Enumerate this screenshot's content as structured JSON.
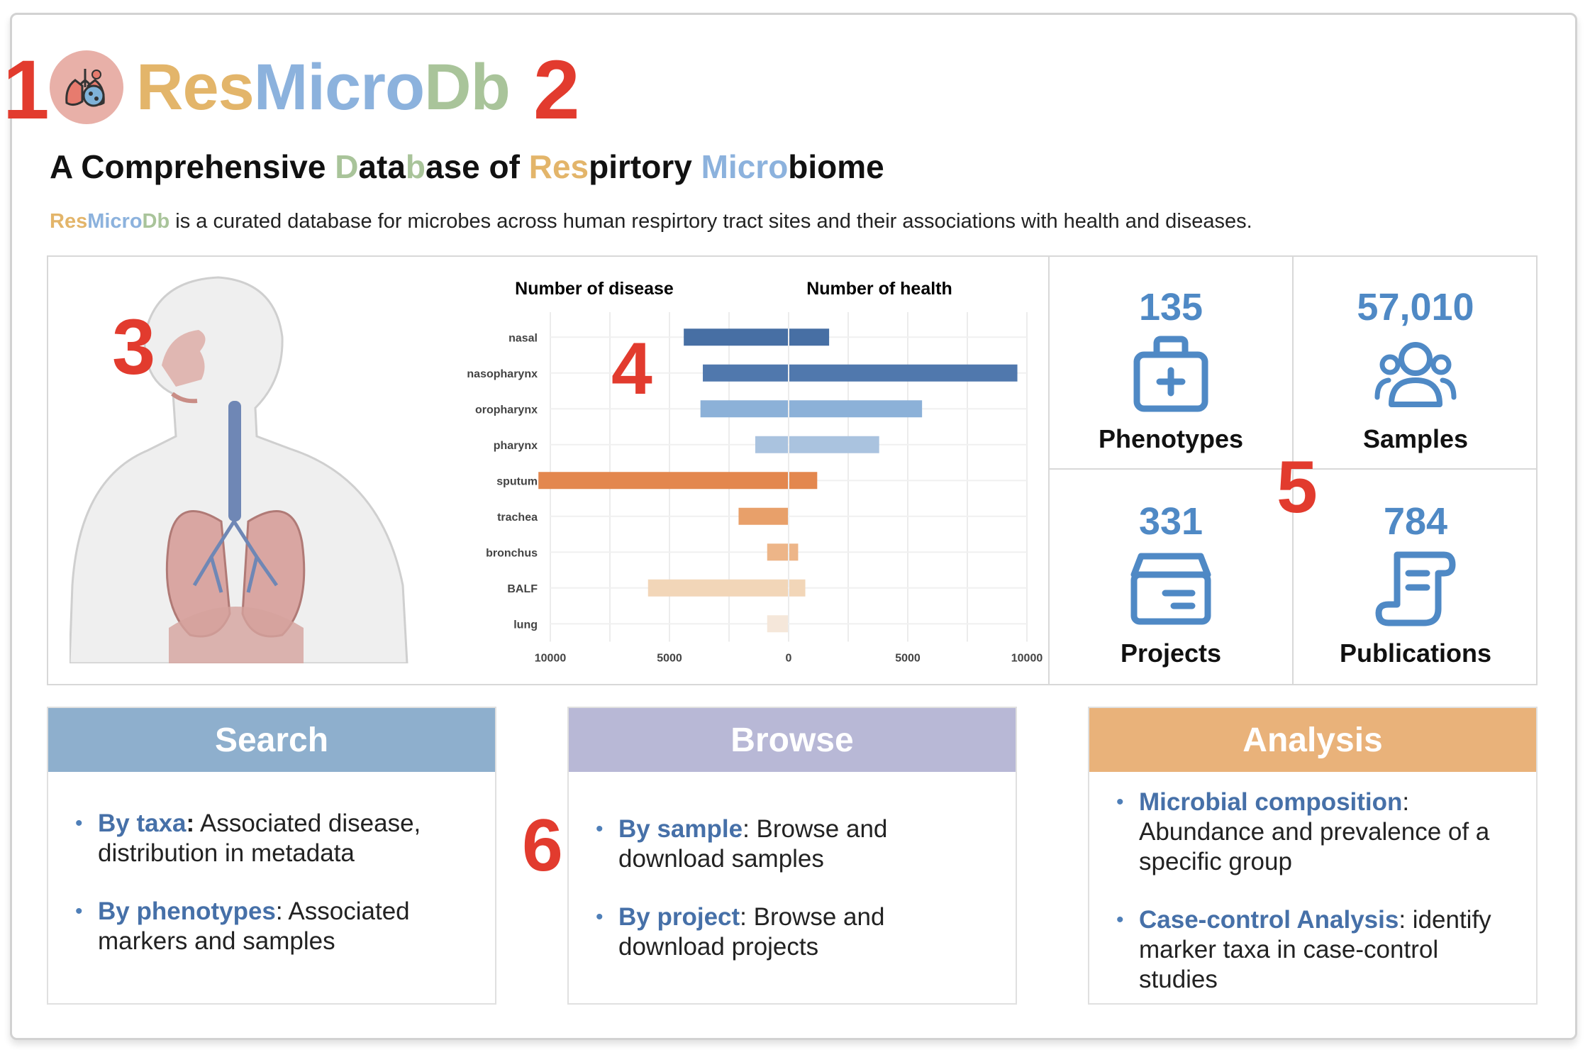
{
  "brand": {
    "name_parts": [
      "Res",
      "Micro",
      "Db"
    ],
    "colors": {
      "res": "#e3b56a",
      "micro": "#8cb2dd",
      "db": "#a9c49a"
    },
    "logo_icon": "lungs-bacteria-icon"
  },
  "headline": {
    "parts": [
      "A Comprehensive ",
      "D",
      "ata",
      "b",
      "ase of ",
      "Res",
      "pirtory ",
      "Micro",
      "biome"
    ]
  },
  "intro": {
    "brand_parts": [
      "Res",
      "Micro",
      "Db"
    ],
    "text": " is a curated database for microbes across human respirtory tract sites and their associations with health and diseases."
  },
  "annotations": [
    "1",
    "2",
    "3",
    "4",
    "5",
    "6"
  ],
  "chart_data": {
    "type": "bar",
    "orientation": "horizontal-diverging",
    "left_title": "Number of disease",
    "right_title": "Number of health",
    "categories": [
      "nasal",
      "nasopharynx",
      "oropharynx",
      "pharynx",
      "sputum",
      "trachea",
      "bronchus",
      "BALF",
      "lung"
    ],
    "series": [
      {
        "name": "Number of disease",
        "values": [
          4400,
          3600,
          3700,
          1400,
          10500,
          2100,
          900,
          5900,
          900
        ]
      },
      {
        "name": "Number of health",
        "values": [
          1700,
          9600,
          5600,
          3800,
          1200,
          0,
          400,
          700,
          0
        ]
      }
    ],
    "bar_colors": [
      "#476fa4",
      "#5078ad",
      "#8cb1d8",
      "#aac3df",
      "#e3874e",
      "#e8a06a",
      "#edb588",
      "#f2d6b8",
      "#f5e7da"
    ],
    "xlim": [
      -10000,
      10000
    ],
    "tick_labels": [
      "10000",
      "5000",
      "0",
      "5000",
      "10000"
    ],
    "tick_values": [
      -10000,
      -5000,
      0,
      5000,
      10000
    ],
    "grid": true
  },
  "stats": [
    {
      "value": "135",
      "label": "Phenotypes",
      "icon": "medical-kit-icon"
    },
    {
      "value": "57,010",
      "label": "Samples",
      "icon": "users-icon"
    },
    {
      "value": "331",
      "label": "Projects",
      "icon": "archive-box-icon"
    },
    {
      "value": "784",
      "label": "Publications",
      "icon": "scroll-document-icon"
    }
  ],
  "cards": [
    {
      "title": "Search",
      "items": [
        {
          "key": "By taxa",
          "sep": ":",
          "text": " Associated disease, distribution in metadata"
        },
        {
          "key": "By phenotypes",
          "sep": ":",
          "text": " Associated markers and samples"
        }
      ]
    },
    {
      "title": "Browse",
      "items": [
        {
          "key": "By sample",
          "sep": ":",
          "text": " Browse and download samples"
        },
        {
          "key": "By project",
          "sep": ":",
          "text": " Browse and download projects"
        }
      ]
    },
    {
      "title": "Analysis",
      "items": [
        {
          "key": "Microbial composition",
          "sep": ":",
          "text": " Abundance and prevalence of a specific group"
        },
        {
          "key": "Case-control Analysis",
          "sep": ":",
          "text": " identify marker taxa in case-control studies"
        }
      ]
    }
  ]
}
